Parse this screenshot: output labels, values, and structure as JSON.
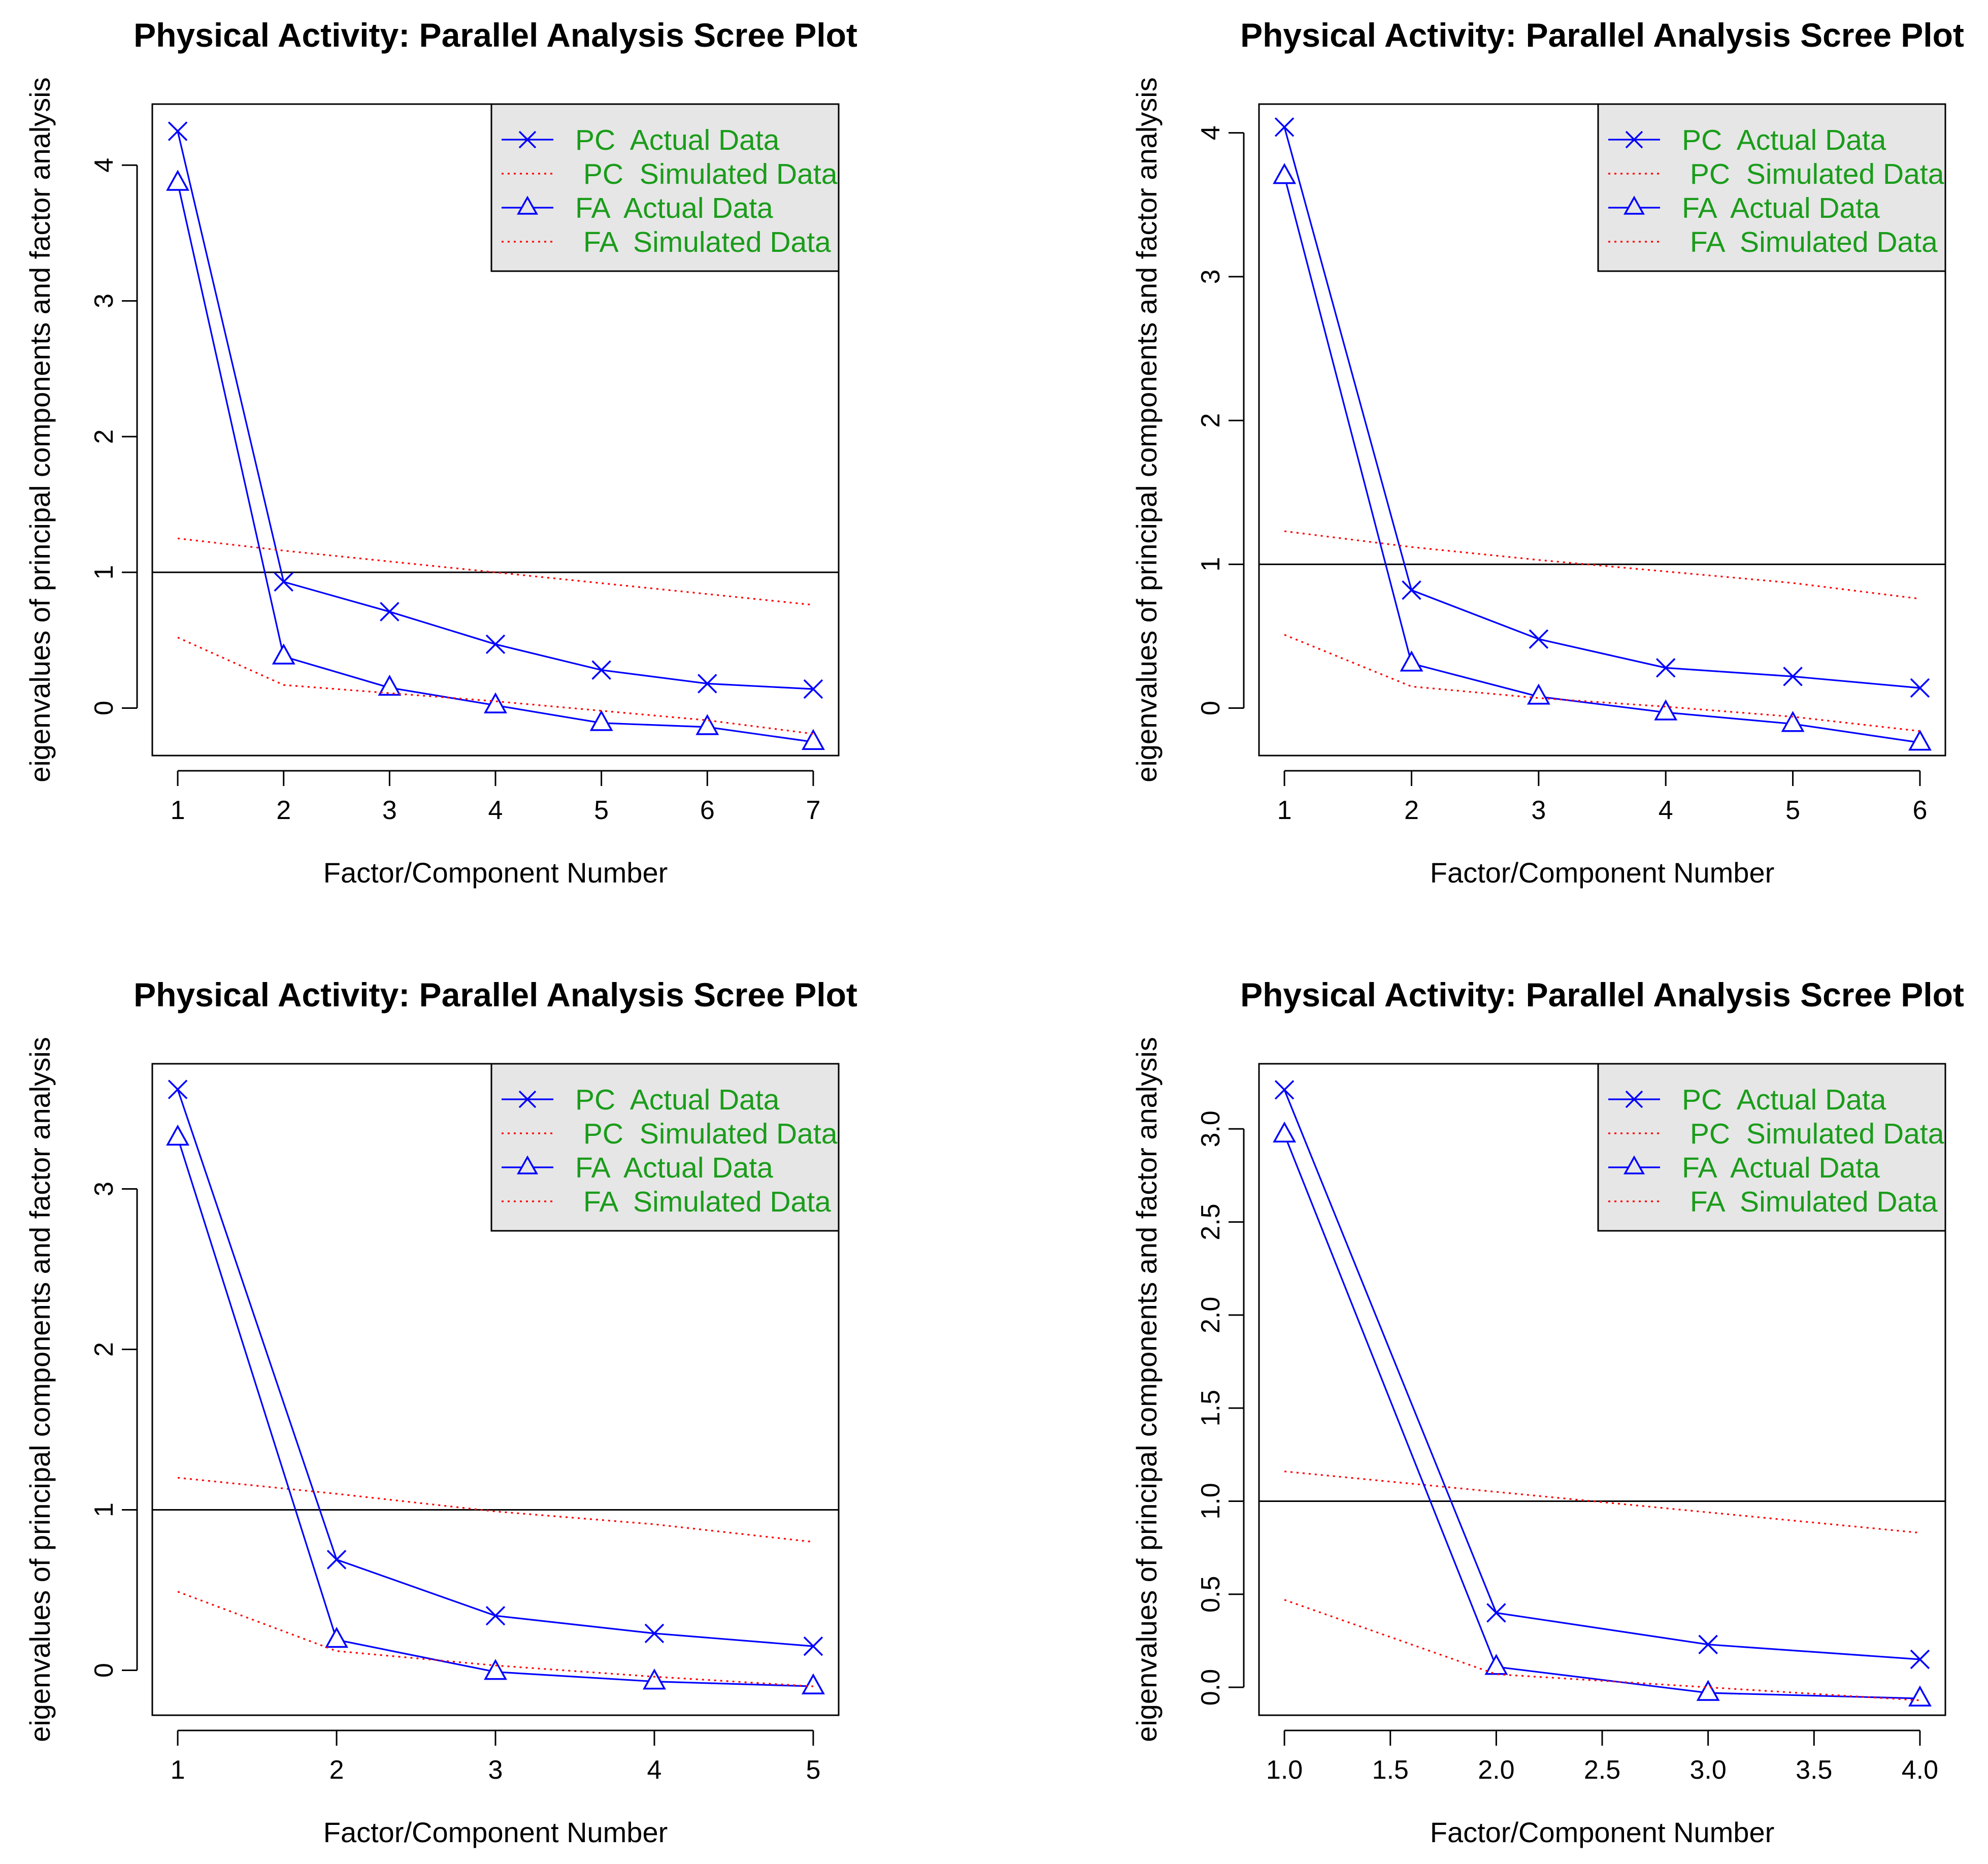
{
  "colors": {
    "actual": "#0000ff",
    "simulated": "#ff0000",
    "legend_text": "#1a9c1a",
    "legend_bg": "#e6e6e6",
    "reference_line": "#000000"
  },
  "chart_data": [
    {
      "type": "line",
      "title": "Physical Activity: Parallel Analysis Scree Plot",
      "xlabel": "Factor/Component Number",
      "ylabel": "eigenvalues of principal components and factor analysis",
      "xlim": [
        1,
        7
      ],
      "ylim": [
        -0.35,
        4.45
      ],
      "xticks": [
        1,
        2,
        3,
        4,
        5,
        6,
        7
      ],
      "xtick_labels": [
        "1",
        "2",
        "3",
        "4",
        "5",
        "6",
        "7"
      ],
      "yticks": [
        0,
        1,
        2,
        3,
        4
      ],
      "ytick_labels": [
        "0",
        "1",
        "2",
        "3",
        "4"
      ],
      "hline": 1,
      "legend": [
        "PC  Actual Data",
        " PC  Simulated Data",
        "FA  Actual Data",
        " FA  Simulated Data"
      ],
      "series": [
        {
          "name": "PC  Actual Data",
          "style": "solid",
          "marker": "x",
          "x": [
            1,
            2,
            3,
            4,
            5,
            6,
            7
          ],
          "values": [
            4.25,
            0.93,
            0.71,
            0.47,
            0.28,
            0.18,
            0.14
          ]
        },
        {
          "name": "PC  Simulated Data",
          "style": "dotted",
          "marker": "none",
          "x": [
            1,
            2,
            3,
            4,
            5,
            6,
            7
          ],
          "values": [
            1.25,
            1.16,
            1.08,
            1.0,
            0.92,
            0.84,
            0.76
          ]
        },
        {
          "name": "FA  Actual Data",
          "style": "solid",
          "marker": "triangle",
          "x": [
            1,
            2,
            3,
            4,
            5,
            6,
            7
          ],
          "values": [
            3.87,
            0.38,
            0.15,
            0.02,
            -0.11,
            -0.14,
            -0.25
          ]
        },
        {
          "name": "FA  Simulated Data",
          "style": "dotted",
          "marker": "none",
          "x": [
            1,
            2,
            3,
            4,
            5,
            6,
            7
          ],
          "values": [
            0.52,
            0.17,
            0.11,
            0.05,
            -0.02,
            -0.09,
            -0.19
          ]
        }
      ]
    },
    {
      "type": "line",
      "title": "Physical Activity: Parallel Analysis Scree Plot",
      "xlabel": "Factor/Component Number",
      "ylabel": "eigenvalues of principal components and factor analysis",
      "xlim": [
        1,
        6
      ],
      "ylim": [
        -0.33,
        4.2
      ],
      "xticks": [
        1,
        2,
        3,
        4,
        5,
        6
      ],
      "xtick_labels": [
        "1",
        "2",
        "3",
        "4",
        "5",
        "6"
      ],
      "yticks": [
        0,
        1,
        2,
        3,
        4
      ],
      "ytick_labels": [
        "0",
        "1",
        "2",
        "3",
        "4"
      ],
      "hline": 1,
      "legend": [
        "PC  Actual Data",
        " PC  Simulated Data",
        "FA  Actual Data",
        " FA  Simulated Data"
      ],
      "series": [
        {
          "name": "PC  Actual Data",
          "style": "solid",
          "marker": "x",
          "x": [
            1,
            2,
            3,
            4,
            5,
            6
          ],
          "values": [
            4.04,
            0.82,
            0.48,
            0.28,
            0.22,
            0.14
          ]
        },
        {
          "name": "PC  Simulated Data",
          "style": "dotted",
          "marker": "none",
          "x": [
            1,
            2,
            3,
            4,
            5,
            6
          ],
          "values": [
            1.23,
            1.12,
            1.03,
            0.95,
            0.87,
            0.76
          ]
        },
        {
          "name": "FA  Actual Data",
          "style": "solid",
          "marker": "triangle",
          "x": [
            1,
            2,
            3,
            4,
            5,
            6
          ],
          "values": [
            3.7,
            0.31,
            0.08,
            -0.03,
            -0.11,
            -0.24
          ]
        },
        {
          "name": "FA  Simulated Data",
          "style": "dotted",
          "marker": "none",
          "x": [
            1,
            2,
            3,
            4,
            5,
            6
          ],
          "values": [
            0.51,
            0.15,
            0.07,
            0.01,
            -0.06,
            -0.16
          ]
        }
      ]
    },
    {
      "type": "line",
      "title": "Physical Activity: Parallel Analysis Scree Plot",
      "xlabel": "Factor/Component Number",
      "ylabel": "eigenvalues of principal components and factor analysis",
      "xlim": [
        1,
        5
      ],
      "ylim": [
        -0.28,
        3.78
      ],
      "xticks": [
        1,
        2,
        3,
        4,
        5
      ],
      "xtick_labels": [
        "1",
        "2",
        "3",
        "4",
        "5"
      ],
      "yticks": [
        0,
        1,
        2,
        3
      ],
      "ytick_labels": [
        "0",
        "1",
        "2",
        "3"
      ],
      "hline": 1,
      "legend": [
        "PC  Actual Data",
        " PC  Simulated Data",
        "FA  Actual Data",
        " FA  Simulated Data"
      ],
      "series": [
        {
          "name": "PC  Actual Data",
          "style": "solid",
          "marker": "x",
          "x": [
            1,
            2,
            3,
            4,
            5
          ],
          "values": [
            3.62,
            0.69,
            0.34,
            0.23,
            0.15
          ]
        },
        {
          "name": "PC  Simulated Data",
          "style": "dotted",
          "marker": "none",
          "x": [
            1,
            2,
            3,
            4,
            5
          ],
          "values": [
            1.2,
            1.1,
            0.99,
            0.91,
            0.8
          ]
        },
        {
          "name": "FA  Actual Data",
          "style": "solid",
          "marker": "triangle",
          "x": [
            1,
            2,
            3,
            4,
            5
          ],
          "values": [
            3.32,
            0.19,
            -0.01,
            -0.07,
            -0.1
          ]
        },
        {
          "name": "FA  Simulated Data",
          "style": "dotted",
          "marker": "none",
          "x": [
            1,
            2,
            3,
            4,
            5
          ],
          "values": [
            0.49,
            0.12,
            0.03,
            -0.04,
            -0.1
          ]
        }
      ]
    },
    {
      "type": "line",
      "title": "Physical Activity: Parallel Analysis Scree Plot",
      "xlabel": "Factor/Component Number",
      "ylabel": "eigenvalues of principal components and factor analysis",
      "xlim": [
        1,
        4
      ],
      "ylim": [
        -0.15,
        3.35
      ],
      "xticks": [
        1,
        1.5,
        2,
        2.5,
        3,
        3.5,
        4
      ],
      "xtick_labels": [
        "1.0",
        "1.5",
        "2.0",
        "2.5",
        "3.0",
        "3.5",
        "4.0"
      ],
      "yticks": [
        0,
        0.5,
        1,
        1.5,
        2,
        2.5,
        3
      ],
      "ytick_labels": [
        "0.0",
        "0.5",
        "1.0",
        "1.5",
        "2.0",
        "2.5",
        "3.0"
      ],
      "hline": 1,
      "legend": [
        "PC  Actual Data",
        " PC  Simulated Data",
        "FA  Actual Data",
        " FA  Simulated Data"
      ],
      "series": [
        {
          "name": "PC  Actual Data",
          "style": "solid",
          "marker": "x",
          "x": [
            1,
            2,
            3,
            4
          ],
          "values": [
            3.21,
            0.4,
            0.23,
            0.15
          ]
        },
        {
          "name": "PC  Simulated Data",
          "style": "dotted",
          "marker": "none",
          "x": [
            1,
            2,
            3,
            4
          ],
          "values": [
            1.16,
            1.05,
            0.94,
            0.83
          ]
        },
        {
          "name": "FA  Actual Data",
          "style": "solid",
          "marker": "triangle",
          "x": [
            1,
            2,
            3,
            4
          ],
          "values": [
            2.97,
            0.11,
            -0.03,
            -0.06
          ]
        },
        {
          "name": "FA  Simulated Data",
          "style": "dotted",
          "marker": "none",
          "x": [
            1,
            2,
            3,
            4
          ],
          "values": [
            0.47,
            0.07,
            0.0,
            -0.07
          ]
        }
      ]
    }
  ]
}
